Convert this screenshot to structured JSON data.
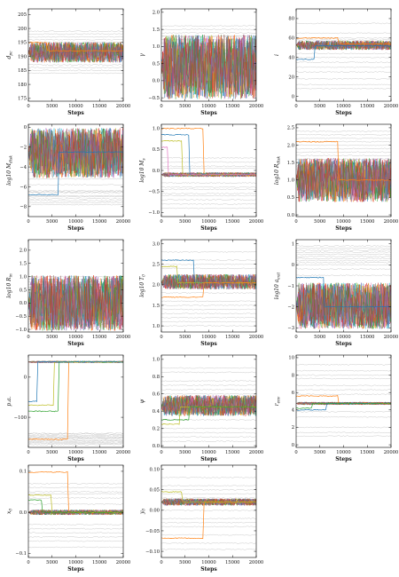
{
  "figure": {
    "common_xlabel": "Steps",
    "rows": 5,
    "cols": 3,
    "trace_palette": [
      "#1f77b4",
      "#ff7f0e",
      "#2ca02c",
      "#d62728",
      "#9467bd",
      "#8c564b",
      "#e377c2",
      "#7f7f7f",
      "#bcbd22",
      "#17becf"
    ],
    "grey_color": "#c8c8c8"
  },
  "chart_data": [
    {
      "type": "line",
      "ylabel": "d_pc",
      "xlabel": "Steps",
      "xlim": [
        0,
        20000
      ],
      "ylim": [
        174,
        207
      ],
      "xticks": [
        "0",
        "5000",
        "10000",
        "15000",
        "20000"
      ],
      "yticks": [
        "175",
        "180",
        "185",
        "190",
        "195",
        "200",
        "205"
      ],
      "band": [
        188,
        195
      ],
      "band_center": 191.5,
      "highlight": [
        {
          "color": "#ff7f0e",
          "start": 195,
          "switch_at": 4000,
          "end": 192
        }
      ],
      "greys": [
        196,
        187,
        193,
        199,
        189,
        185,
        197,
        186,
        195,
        198,
        184,
        192
      ]
    },
    {
      "type": "line",
      "ylabel": "γ",
      "xlabel": "Steps",
      "xlim": [
        0,
        20000
      ],
      "ylim": [
        -0.6,
        2.1
      ],
      "xticks": [
        "0",
        "5000",
        "10000",
        "15000",
        "20000"
      ],
      "yticks": [
        "−0.5",
        "0.0",
        "0.5",
        "1.0",
        "1.5",
        "2.0"
      ],
      "band": [
        -0.5,
        1.3
      ],
      "band_center": 0.4,
      "highlight": [],
      "greys": [
        1.6,
        1.1,
        0.9,
        1.3,
        0.2,
        1.4,
        1.2,
        1.5,
        0.8,
        1.0,
        0.3,
        1.3
      ]
    },
    {
      "type": "line",
      "ylabel": "i",
      "xlabel": "Steps",
      "xlim": [
        0,
        20000
      ],
      "ylim": [
        -5,
        90
      ],
      "xticks": [
        "0",
        "5000",
        "10000",
        "15000",
        "20000"
      ],
      "yticks": [
        "0",
        "20",
        "40",
        "60",
        "80"
      ],
      "band": [
        48,
        57
      ],
      "band_center": 53,
      "highlight": [
        {
          "color": "#ff7f0e",
          "start": 60,
          "switch_at": 9000,
          "end": 54
        },
        {
          "color": "#1f77b4",
          "start": 38,
          "switch_at": 4000,
          "end": 52
        }
      ],
      "greys": [
        75,
        30,
        18,
        40,
        60,
        12,
        44,
        25,
        58,
        35,
        8,
        65
      ]
    },
    {
      "type": "line",
      "ylabel": "log10 M_disk",
      "xlabel": "Steps",
      "xlim": [
        0,
        20000
      ],
      "ylim": [
        -9,
        0.3
      ],
      "xticks": [
        "0",
        "5000",
        "10000",
        "15000",
        "20000"
      ],
      "yticks": [
        "−8",
        "−6",
        "−4",
        "−2",
        "0"
      ],
      "band": [
        -5,
        -0.2
      ],
      "band_center": -2.5,
      "highlight": [
        {
          "color": "#1f77b4",
          "start": -6.8,
          "switch_at": 6500,
          "end": -2.5
        }
      ],
      "greys": [
        -6.9,
        -7.2,
        -6.6,
        -7.8,
        -6.4,
        -7.4,
        -7.0,
        -6.5,
        -5.8,
        -7.6,
        -5.2,
        -4.6
      ]
    },
    {
      "type": "line",
      "ylabel": "log10 M_s",
      "xlabel": "Steps",
      "xlim": [
        0,
        20000
      ],
      "ylim": [
        -1.1,
        1.1
      ],
      "xticks": [
        "0",
        "5000",
        "10000",
        "15000",
        "20000"
      ],
      "yticks": [
        "−1.0",
        "−0.5",
        "0.0",
        "0.5",
        "1.0"
      ],
      "band": [
        -0.15,
        -0.05
      ],
      "band_center": -0.1,
      "highlight": [
        {
          "color": "#ff7f0e",
          "start": 1.0,
          "switch_at": 9000,
          "end": -0.1
        },
        {
          "color": "#1f77b4",
          "start": 0.85,
          "switch_at": 6000,
          "end": -0.1
        },
        {
          "color": "#bcbd22",
          "start": 0.7,
          "switch_at": 4500,
          "end": -0.1
        },
        {
          "color": "#e377c2",
          "start": 0.55,
          "switch_at": 1500,
          "end": -0.1
        }
      ],
      "greys": [
        0.3,
        0.1,
        -0.4,
        -0.55,
        -0.7,
        -0.9,
        0.2,
        -0.3,
        -0.45,
        0.05,
        -0.6,
        -0.8
      ]
    },
    {
      "type": "line",
      "ylabel": "log10 R_disk",
      "xlabel": "Steps",
      "xlim": [
        0,
        20000
      ],
      "ylim": [
        -0.05,
        2.6
      ],
      "xticks": [
        "0",
        "5000",
        "10000",
        "15000",
        "20000"
      ],
      "yticks": [
        "0.0",
        "0.5",
        "1.0",
        "1.5",
        "2.0",
        "2.5"
      ],
      "band": [
        0.4,
        1.6
      ],
      "band_center": 1.0,
      "highlight": [
        {
          "color": "#ff7f0e",
          "start": 2.1,
          "switch_at": 9000,
          "end": 1.0
        }
      ],
      "greys": [
        2.3,
        1.9,
        1.7,
        2.0,
        1.8,
        2.2,
        1.6,
        2.4,
        1.5,
        1.4,
        2.1,
        1.3
      ]
    },
    {
      "type": "line",
      "ylabel": "log10 R_in",
      "xlabel": "Steps",
      "xlim": [
        0,
        20000
      ],
      "ylim": [
        -1.1,
        2.4
      ],
      "xticks": [
        "0",
        "5000",
        "10000",
        "15000",
        "20000"
      ],
      "yticks": [
        "−1.0",
        "−0.5",
        "0.0",
        "0.5",
        "1.0",
        "1.5",
        "2.0"
      ],
      "band": [
        -1.0,
        1.0
      ],
      "band_center": 0.0,
      "highlight": [],
      "greys": [
        1.0,
        0.6,
        0.2,
        -0.4,
        0.8,
        0.4,
        -0.8,
        0.1,
        -0.2,
        0.7,
        -0.6,
        0.9
      ]
    },
    {
      "type": "line",
      "ylabel": "log10 T_0",
      "xlabel": "Steps",
      "xlim": [
        0,
        20000
      ],
      "ylim": [
        0.85,
        3.1
      ],
      "xticks": [
        "0",
        "5000",
        "10000",
        "15000",
        "20000"
      ],
      "yticks": [
        "1.0",
        "1.5",
        "2.0",
        "2.5",
        "3.0"
      ],
      "band": [
        1.9,
        2.25
      ],
      "band_center": 2.05,
      "highlight": [
        {
          "color": "#1f77b4",
          "start": 2.6,
          "switch_at": 7000,
          "end": 2.05
        },
        {
          "color": "#bcbd22",
          "start": 2.45,
          "switch_at": 3500,
          "end": 2.05
        },
        {
          "color": "#ff7f0e",
          "start": 1.7,
          "switch_at": 9000,
          "end": 2.05
        }
      ],
      "greys": [
        2.6,
        2.5,
        1.4,
        1.1,
        1.2,
        1.8,
        2.4,
        1.3,
        1.6,
        2.8,
        1.0,
        1.5
      ]
    },
    {
      "type": "line",
      "ylabel": "log10 a_exit",
      "xlabel": "Steps",
      "xlim": [
        0,
        20000
      ],
      "ylim": [
        -3.2,
        1.2
      ],
      "xticks": [
        "0",
        "5000",
        "10000",
        "15000",
        "20000"
      ],
      "yticks": [
        "−3",
        "−2",
        "−1",
        "0",
        "1"
      ],
      "band": [
        -3.0,
        -0.9
      ],
      "band_center": -2.0,
      "highlight": [
        {
          "color": "#1f77b4",
          "start": -0.6,
          "switch_at": 6000,
          "end": -2.0
        }
      ],
      "greys": [
        0.6,
        0.2,
        0.5,
        0.8,
        -0.2,
        0.3,
        0.9,
        0.0,
        0.4,
        -0.5,
        0.7,
        0.1
      ]
    },
    {
      "type": "line",
      "ylabel": "p.a.",
      "xlabel": "Steps",
      "xlim": [
        0,
        20000
      ],
      "ylim": [
        -175,
        55
      ],
      "xticks": [
        "0",
        "5000",
        "10000",
        "15000",
        "20000"
      ],
      "yticks": [
        "−100",
        "0"
      ],
      "band": [
        36,
        40
      ],
      "band_center": 38,
      "highlight": [
        {
          "color": "#ff7f0e",
          "start": -155,
          "switch_at": 8500,
          "end": 38
        },
        {
          "color": "#2ca02c",
          "start": -85,
          "switch_at": 6500,
          "end": 38
        },
        {
          "color": "#bcbd22",
          "start": -70,
          "switch_at": 5500,
          "end": 38
        },
        {
          "color": "#1f77b4",
          "start": -60,
          "switch_at": 2000,
          "end": 38
        }
      ],
      "greys": [
        -160,
        -163,
        -150,
        -145,
        -168,
        -158,
        -140,
        -148,
        -155,
        -165,
        -152,
        -142
      ]
    },
    {
      "type": "line",
      "ylabel": "ψ",
      "xlabel": "Steps",
      "xlim": [
        0,
        20000
      ],
      "ylim": [
        -0.02,
        1.05
      ],
      "xticks": [
        "0",
        "5000",
        "10000",
        "15000",
        "20000"
      ],
      "yticks": [
        "0.0",
        "0.2",
        "0.4",
        "0.6",
        "0.8",
        "1.0"
      ],
      "band": [
        0.35,
        0.58
      ],
      "band_center": 0.45,
      "highlight": [
        {
          "color": "#bcbd22",
          "start": 0.25,
          "switch_at": 4000,
          "end": 0.45
        },
        {
          "color": "#2ca02c",
          "start": 0.3,
          "switch_at": 6000,
          "end": 0.45
        }
      ],
      "greys": [
        0.75,
        0.65,
        0.55,
        0.2,
        0.1,
        0.85,
        0.05,
        0.7,
        0.6,
        0.15,
        0.9,
        0.3
      ]
    },
    {
      "type": "line",
      "ylabel": "r_env",
      "xlabel": "Steps",
      "xlim": [
        0,
        20000
      ],
      "ylim": [
        -0.3,
        10.3
      ],
      "xticks": [
        "0",
        "5000",
        "10000",
        "15000",
        "20000"
      ],
      "yticks": [
        "0",
        "2",
        "4",
        "6",
        "8",
        "10"
      ],
      "band": [
        4.6,
        4.9
      ],
      "band_center": 4.75,
      "highlight": [
        {
          "color": "#ff7f0e",
          "start": 5.6,
          "switch_at": 9000,
          "end": 4.75
        },
        {
          "color": "#1f77b4",
          "start": 4.0,
          "switch_at": 6500,
          "end": 4.75
        },
        {
          "color": "#2ca02c",
          "start": 4.2,
          "switch_at": 3500,
          "end": 4.75
        }
      ],
      "greys": [
        9.2,
        8.0,
        7.6,
        6.8,
        3.2,
        2.0,
        1.4,
        5.8,
        6.3,
        8.5,
        3.8,
        1.0
      ]
    },
    {
      "type": "line",
      "ylabel": "x_0",
      "xlabel": "Steps",
      "xlim": [
        0,
        20000
      ],
      "ylim": [
        -0.11,
        0.115
      ],
      "xticks": [
        "0",
        "5000",
        "10000",
        "15000",
        "20000"
      ],
      "yticks": [
        "−0.1",
        "0.0",
        "0.1"
      ],
      "band": [
        -0.006,
        0.006
      ],
      "band_center": 0.0,
      "highlight": [
        {
          "color": "#ff7f0e",
          "start": 0.098,
          "switch_at": 8500,
          "end": 0.0
        },
        {
          "color": "#bcbd22",
          "start": 0.042,
          "switch_at": 5000,
          "end": 0.0
        },
        {
          "color": "#2ca02c",
          "start": 0.03,
          "switch_at": 3000,
          "end": 0.0
        }
      ],
      "greys": [
        0.07,
        0.05,
        0.035,
        -0.05,
        -0.06,
        -0.085,
        0.045,
        -0.03,
        0.06,
        -0.07,
        0.02,
        -0.04
      ]
    },
    {
      "type": "line",
      "ylabel": "y_0",
      "xlabel": "Steps",
      "xlim": [
        0,
        20000
      ],
      "ylim": [
        -0.115,
        0.11
      ],
      "xticks": [
        "0",
        "5000",
        "10000",
        "15000",
        "20000"
      ],
      "yticks": [
        "−0.10",
        "−0.05",
        "0.00",
        "0.05",
        "0.10"
      ],
      "band": [
        0.012,
        0.028
      ],
      "band_center": 0.02,
      "highlight": [
        {
          "color": "#ff7f0e",
          "start": -0.068,
          "switch_at": 9000,
          "end": 0.02
        },
        {
          "color": "#bcbd22",
          "start": 0.045,
          "switch_at": 4500,
          "end": 0.02
        }
      ],
      "greys": [
        0.08,
        0.04,
        -0.02,
        -0.04,
        -0.08,
        -0.095,
        0.06,
        0.0,
        -0.06,
        0.03,
        -0.03,
        0.05
      ]
    }
  ]
}
